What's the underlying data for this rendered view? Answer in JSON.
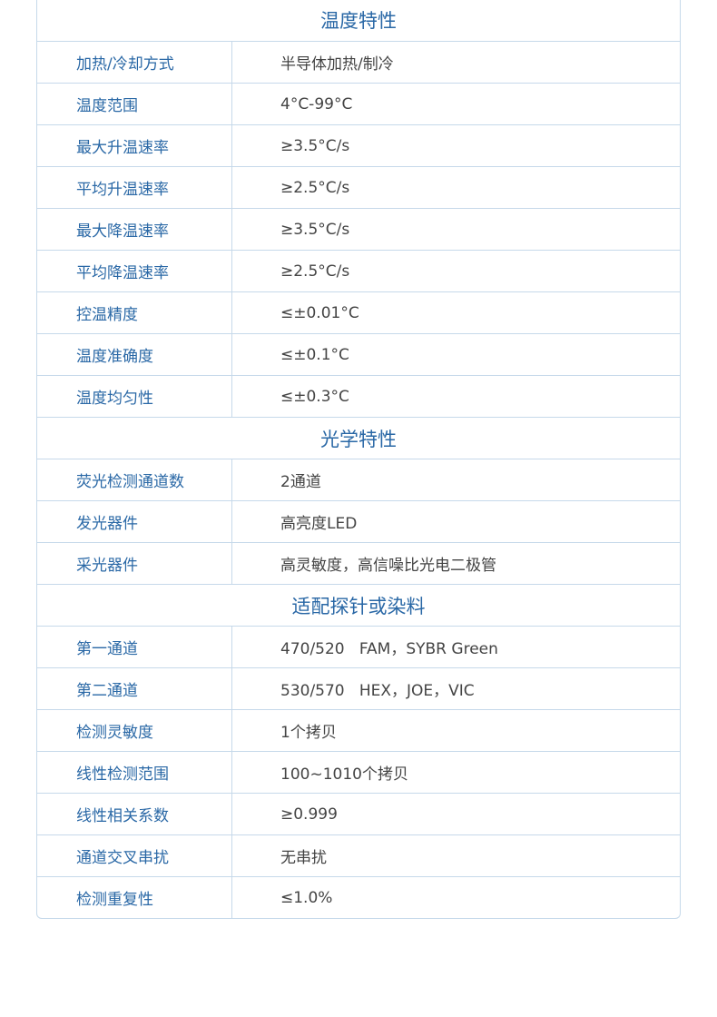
{
  "sections": [
    {
      "title": "温度特性",
      "rows": [
        {
          "label": "加热/冷却方式",
          "value": "半导体加热/制冷"
        },
        {
          "label": "温度范围",
          "value": "4°C-99°C"
        },
        {
          "label": "最大升温速率",
          "value": "≥3.5°C/s"
        },
        {
          "label": "平均升温速率",
          "value": "≥2.5°C/s"
        },
        {
          "label": "最大降温速率",
          "value": "≥3.5°C/s"
        },
        {
          "label": "平均降温速率",
          "value": "≥2.5°C/s"
        },
        {
          "label": "控温精度",
          "value": "≤±0.01°C"
        },
        {
          "label": "温度准确度",
          "value": "≤±0.1°C"
        },
        {
          "label": "温度均匀性",
          "value": "≤±0.3°C"
        }
      ]
    },
    {
      "title": "光学特性",
      "rows": [
        {
          "label": "荧光检测通道数",
          "value": "2通道"
        },
        {
          "label": "发光器件",
          "value": "高亮度LED"
        },
        {
          "label": "采光器件",
          "value": "高灵敏度，高信噪比光电二极管"
        }
      ]
    },
    {
      "title": "适配探针或染料",
      "rows": [
        {
          "label": "第一通道",
          "value": "470/520   FAM，SYBR Green"
        },
        {
          "label": "第二通道",
          "value": "530/570   HEX，JOE，VIC"
        },
        {
          "label": "检测灵敏度",
          "value": "1个拷贝"
        },
        {
          "label": "线性检测范围",
          "value": "100~1010个拷贝"
        },
        {
          "label": "线性相关系数",
          "value": "≥0.999"
        },
        {
          "label": "通道交叉串扰",
          "value": "无串扰"
        },
        {
          "label": "检测重复性",
          "value": "≤1.0%"
        }
      ]
    }
  ]
}
